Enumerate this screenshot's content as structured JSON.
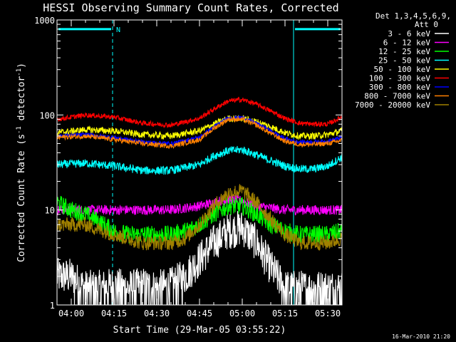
{
  "chart_data": {
    "type": "line",
    "title": "HESSI Observing Summary Count Rates, Corrected",
    "xlabel": "Start Time (29-Mar-05 03:55:22)",
    "ylabel": "Corrected Count Rate (s^-1 detector^-1)",
    "ylabel_main": "Corrected Count Rate (s",
    "ylabel_sup1": "-1",
    "ylabel_mid": " detector",
    "ylabel_sup2": "-1",
    "ylabel_end": ")",
    "y_scale": "log",
    "ylim": [
      1,
      1000
    ],
    "xlim_minutes_after_0355": [
      0,
      100
    ],
    "y_ticks": [
      "1",
      "10",
      "100",
      "1000"
    ],
    "x_ticks": [
      {
        "label": "04:00",
        "minute": 5
      },
      {
        "label": "04:15",
        "minute": 20
      },
      {
        "label": "04:30",
        "minute": 35
      },
      {
        "label": "04:45",
        "minute": 50
      },
      {
        "label": "05:00",
        "minute": 65
      },
      {
        "label": "05:15",
        "minute": 80
      },
      {
        "label": "05:30",
        "minute": 95
      }
    ],
    "legend_header": [
      "Det 1,3,4,5,6,9,",
      "Att 0"
    ],
    "series": [
      {
        "name": "3 - 6 keV",
        "color": "#ffffff",
        "points": [
          [
            0,
            2
          ],
          [
            5,
            2
          ],
          [
            10,
            1.5
          ],
          [
            15,
            1.5
          ],
          [
            20,
            1.6
          ],
          [
            25,
            1.5
          ],
          [
            30,
            1.6
          ],
          [
            35,
            1.5
          ],
          [
            40,
            1.6
          ],
          [
            45,
            2
          ],
          [
            50,
            3
          ],
          [
            55,
            4.5
          ],
          [
            60,
            6
          ],
          [
            65,
            6.5
          ],
          [
            70,
            4.5
          ],
          [
            75,
            2.5
          ],
          [
            80,
            1.5
          ],
          [
            85,
            1.5
          ],
          [
            90,
            1.5
          ],
          [
            95,
            1.5
          ],
          [
            100,
            1.5
          ]
        ]
      },
      {
        "name": "6 - 12 keV",
        "color": "#ff00ff",
        "points": [
          [
            0,
            10
          ],
          [
            10,
            10
          ],
          [
            20,
            10
          ],
          [
            30,
            10
          ],
          [
            40,
            10
          ],
          [
            50,
            11
          ],
          [
            60,
            13
          ],
          [
            65,
            12.5
          ],
          [
            70,
            11
          ],
          [
            80,
            10
          ],
          [
            90,
            10
          ],
          [
            100,
            10
          ]
        ]
      },
      {
        "name": "12 - 25 keV",
        "color": "#00ff00",
        "points": [
          [
            0,
            12
          ],
          [
            5,
            10
          ],
          [
            10,
            9
          ],
          [
            15,
            7.5
          ],
          [
            20,
            6
          ],
          [
            25,
            5.5
          ],
          [
            30,
            5.5
          ],
          [
            35,
            5.5
          ],
          [
            40,
            5.5
          ],
          [
            45,
            6
          ],
          [
            50,
            7
          ],
          [
            55,
            9
          ],
          [
            60,
            11
          ],
          [
            65,
            11
          ],
          [
            70,
            9
          ],
          [
            75,
            7
          ],
          [
            80,
            6
          ],
          [
            85,
            5.5
          ],
          [
            90,
            5.5
          ],
          [
            95,
            5.5
          ],
          [
            100,
            6
          ]
        ]
      },
      {
        "name": "25 - 50 keV",
        "color": "#00ffff",
        "points": [
          [
            0,
            30
          ],
          [
            10,
            31
          ],
          [
            20,
            29
          ],
          [
            30,
            26
          ],
          [
            40,
            26
          ],
          [
            50,
            30
          ],
          [
            55,
            37
          ],
          [
            60,
            42
          ],
          [
            65,
            43
          ],
          [
            70,
            38
          ],
          [
            75,
            33
          ],
          [
            80,
            29
          ],
          [
            85,
            27
          ],
          [
            90,
            27
          ],
          [
            95,
            29
          ],
          [
            100,
            36
          ]
        ]
      },
      {
        "name": "50 - 100 keV",
        "color": "#ffff00",
        "points": [
          [
            0,
            65
          ],
          [
            10,
            70
          ],
          [
            20,
            68
          ],
          [
            30,
            62
          ],
          [
            40,
            60
          ],
          [
            50,
            68
          ],
          [
            55,
            80
          ],
          [
            60,
            92
          ],
          [
            65,
            92
          ],
          [
            70,
            85
          ],
          [
            75,
            75
          ],
          [
            80,
            65
          ],
          [
            85,
            60
          ],
          [
            90,
            60
          ],
          [
            95,
            62
          ],
          [
            100,
            68
          ]
        ]
      },
      {
        "name": "100 - 300 keV",
        "color": "#ff0000",
        "points": [
          [
            0,
            90
          ],
          [
            10,
            100
          ],
          [
            20,
            95
          ],
          [
            30,
            82
          ],
          [
            40,
            78
          ],
          [
            50,
            92
          ],
          [
            55,
            115
          ],
          [
            60,
            140
          ],
          [
            65,
            145
          ],
          [
            70,
            130
          ],
          [
            75,
            110
          ],
          [
            80,
            92
          ],
          [
            85,
            82
          ],
          [
            90,
            80
          ],
          [
            95,
            80
          ],
          [
            100,
            95
          ]
        ]
      },
      {
        "name": "300 - 800 keV",
        "color": "#0000ff",
        "points": [
          [
            0,
            60
          ],
          [
            10,
            62
          ],
          [
            20,
            58
          ],
          [
            30,
            52
          ],
          [
            40,
            50
          ],
          [
            50,
            58
          ],
          [
            55,
            75
          ],
          [
            60,
            93
          ],
          [
            65,
            94
          ],
          [
            70,
            82
          ],
          [
            75,
            68
          ],
          [
            80,
            56
          ],
          [
            85,
            52
          ],
          [
            90,
            52
          ],
          [
            95,
            53
          ],
          [
            100,
            58
          ]
        ]
      },
      {
        "name": "800 - 7000 keV",
        "color": "#ff8000",
        "points": [
          [
            0,
            58
          ],
          [
            10,
            60
          ],
          [
            20,
            55
          ],
          [
            30,
            50
          ],
          [
            40,
            47
          ],
          [
            50,
            55
          ],
          [
            55,
            72
          ],
          [
            60,
            90
          ],
          [
            65,
            90
          ],
          [
            70,
            78
          ],
          [
            75,
            64
          ],
          [
            80,
            53
          ],
          [
            85,
            49
          ],
          [
            90,
            49
          ],
          [
            95,
            50
          ],
          [
            100,
            54
          ]
        ]
      },
      {
        "name": "7000 - 20000 keV",
        "color": "#a08000",
        "points": [
          [
            0,
            7
          ],
          [
            10,
            7
          ],
          [
            20,
            5.5
          ],
          [
            30,
            4.5
          ],
          [
            40,
            4.5
          ],
          [
            45,
            5
          ],
          [
            50,
            7
          ],
          [
            55,
            11
          ],
          [
            60,
            15
          ],
          [
            65,
            16
          ],
          [
            70,
            12
          ],
          [
            75,
            8
          ],
          [
            80,
            5.5
          ],
          [
            85,
            4.5
          ],
          [
            90,
            4.5
          ],
          [
            95,
            4.5
          ],
          [
            100,
            5
          ]
        ]
      }
    ],
    "annotations": {
      "flag_label": "N",
      "flag_color": "#00ffff",
      "flag_segments_minutes": [
        [
          0,
          19.5
        ],
        [
          83,
          100
        ]
      ],
      "flag_level": 800,
      "night_boundaries_minutes": [
        0,
        19.5,
        83,
        100
      ]
    },
    "footer_timestamp": "16-Mar-2010 21:20"
  }
}
